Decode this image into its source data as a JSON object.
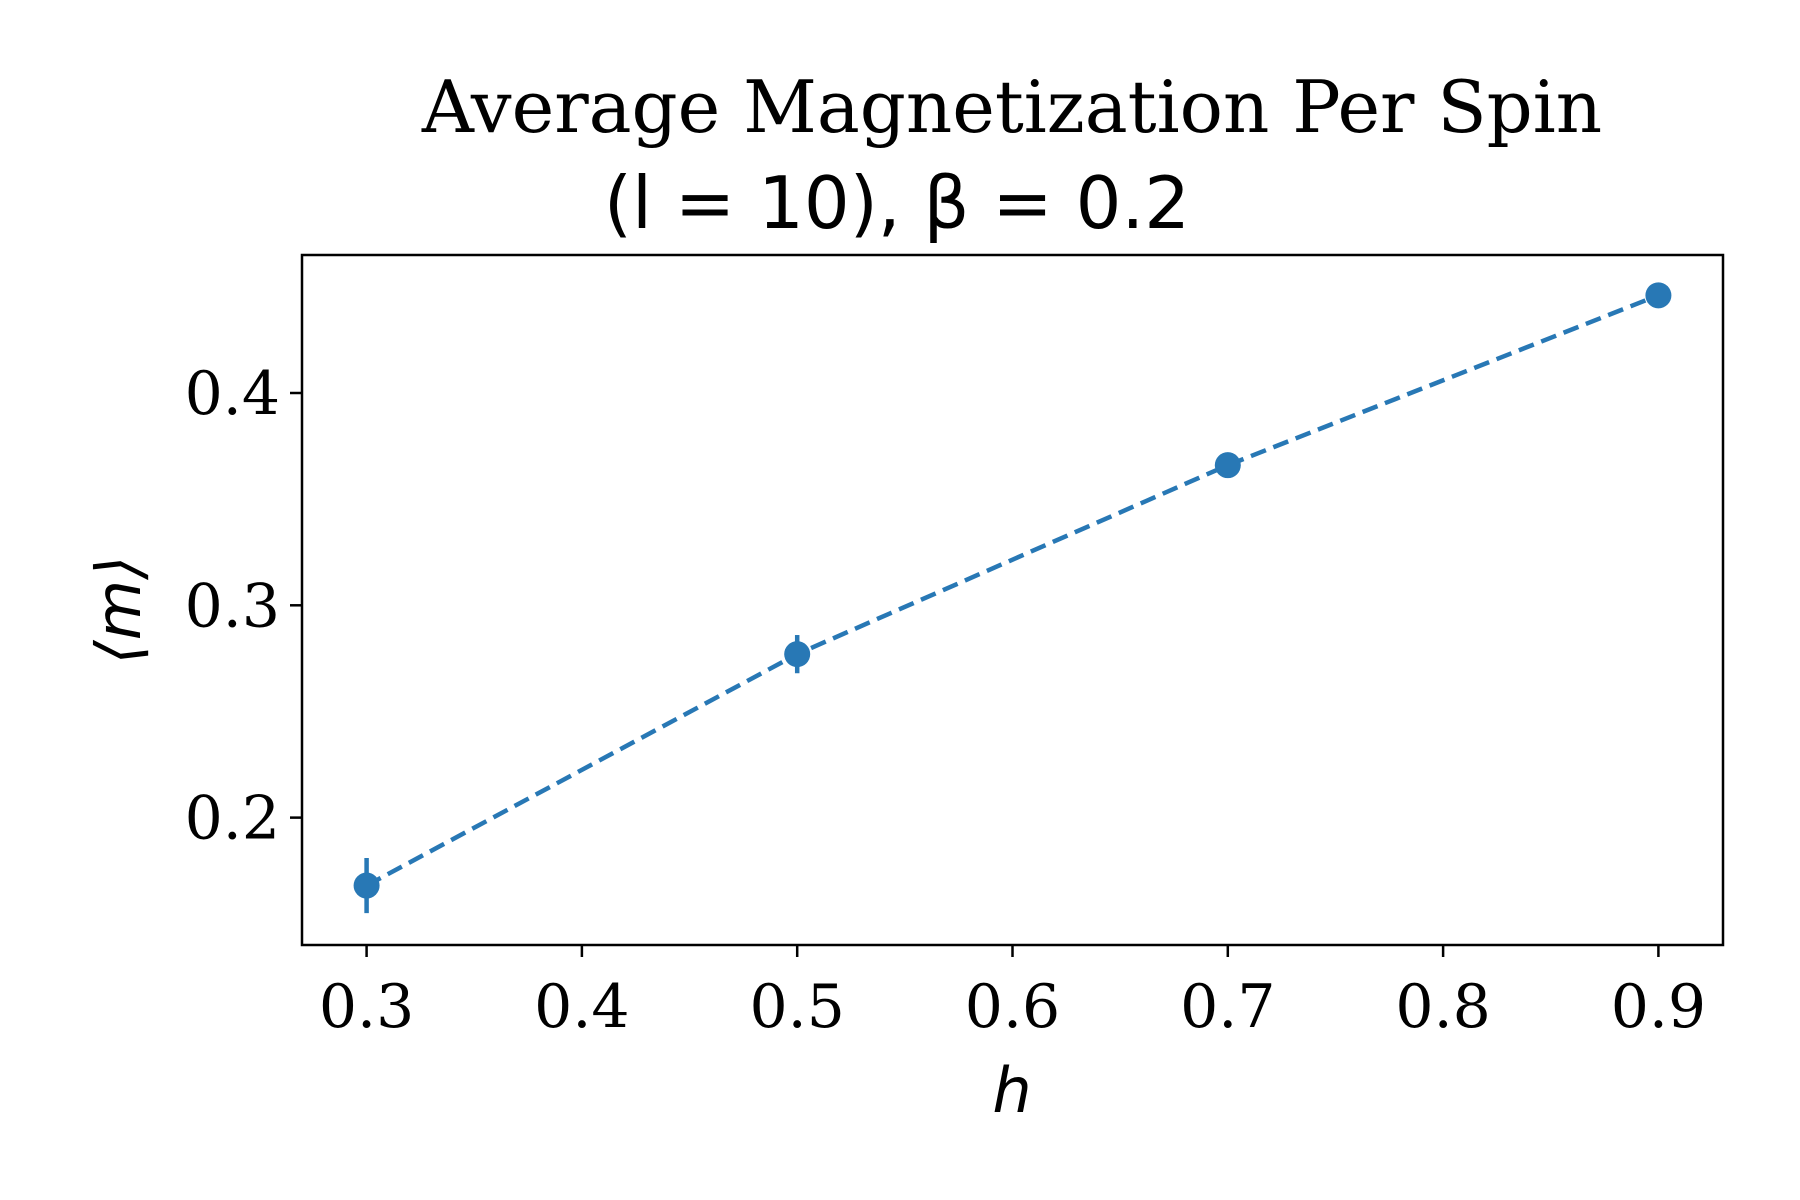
{
  "chart_data": {
    "type": "line",
    "title_line1": "Average Magnetization Per Spin",
    "title_line2": "(l = 10), β = 0.2",
    "xlabel": "h",
    "ylabel": "⟨m⟩",
    "xlim": [
      0.27,
      0.93
    ],
    "ylim": [
      0.14,
      0.465
    ],
    "xticks": [
      "0.3",
      "0.4",
      "0.5",
      "0.6",
      "0.7",
      "0.8",
      "0.9"
    ],
    "yticks": [
      "0.2",
      "0.3",
      "0.4"
    ],
    "grid": false,
    "line_style": "dashed",
    "color": "#2878b5",
    "series": [
      {
        "x": [
          0.3,
          0.5,
          0.7,
          0.9
        ],
        "y": [
          0.168,
          0.277,
          0.366,
          0.446
        ],
        "yerr": [
          0.013,
          0.009,
          0.004,
          0.003
        ]
      }
    ]
  }
}
